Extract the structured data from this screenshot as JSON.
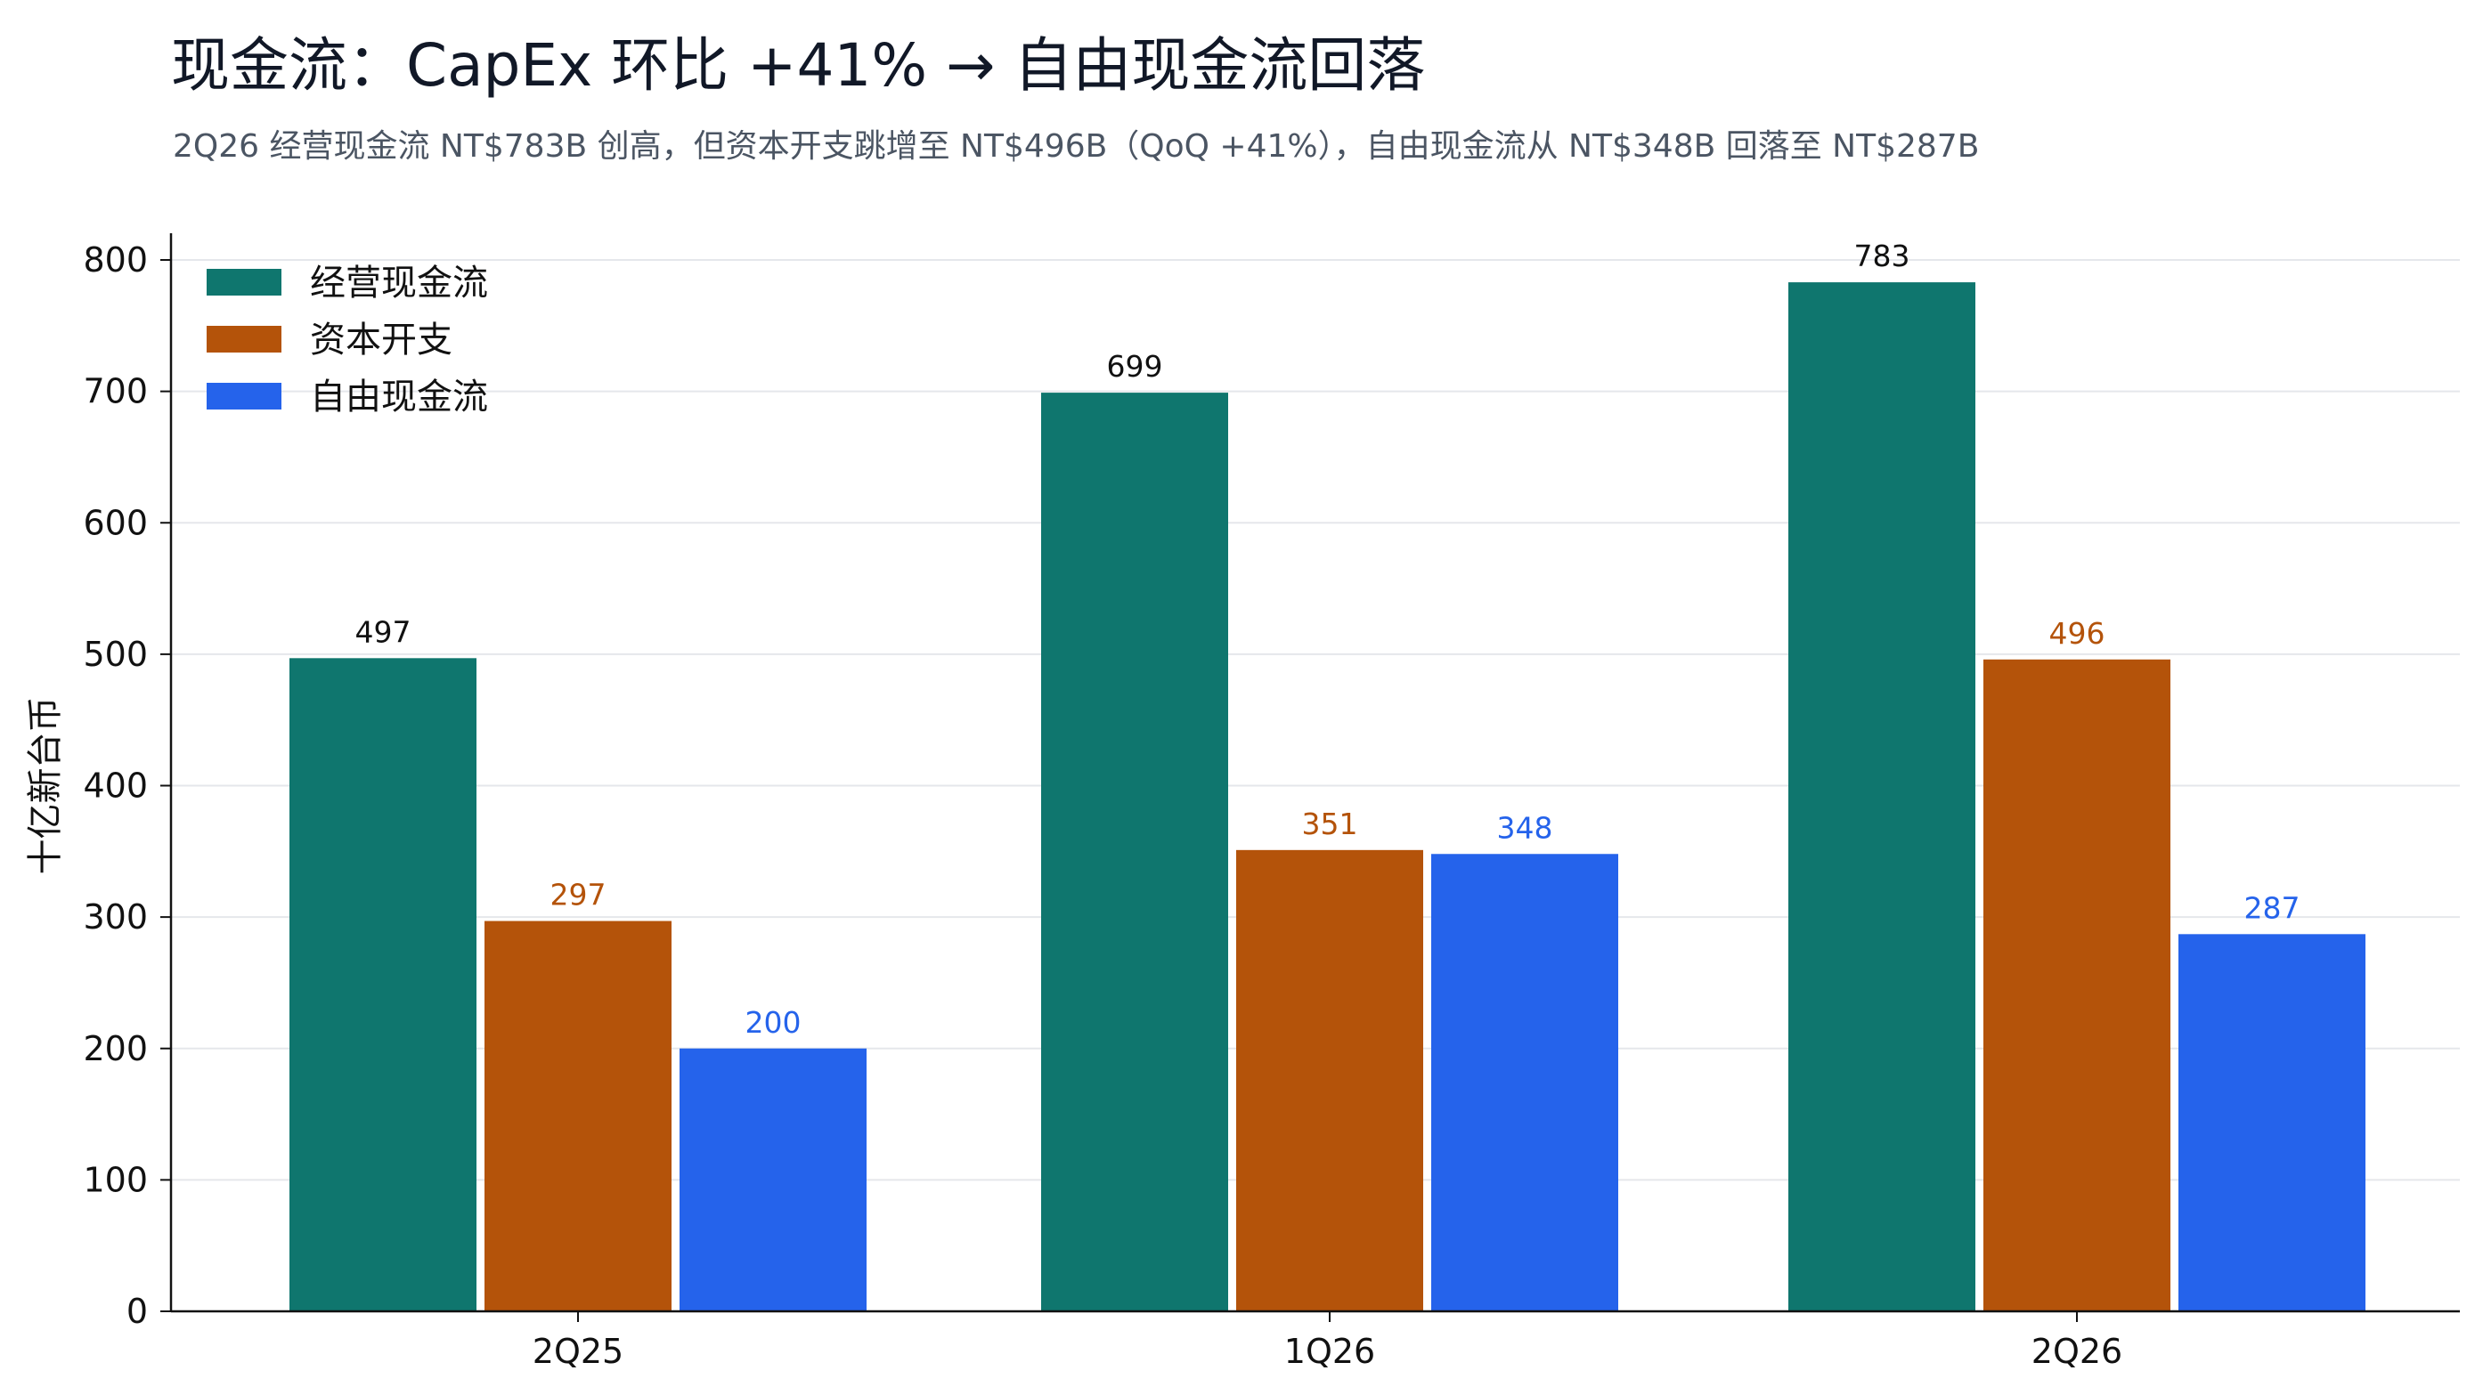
{
  "chart_data": {
    "type": "bar",
    "title": "现金流：CapEx 环比 +41% → 自由现金流回落",
    "subtitle": "2Q26 经营现金流 NT$783B 创高，但资本开支跳增至 NT$496B（QoQ +41%），自由现金流从 NT$348B 回落至 NT$287B",
    "xlabel": "",
    "ylabel": "十亿新台币",
    "ylim": [
      0,
      800
    ],
    "yticks": [
      0,
      100,
      200,
      300,
      400,
      500,
      600,
      700,
      800
    ],
    "grid": true,
    "legend_position": "top-left",
    "categories": [
      "2Q25",
      "1Q26",
      "2Q26"
    ],
    "series": [
      {
        "name": "经营现金流",
        "color": "#0f766e",
        "label_color": "#111111",
        "values": [
          497,
          699,
          783
        ]
      },
      {
        "name": "资本开支",
        "color": "#b4530a",
        "label_color": "#b4530a",
        "values": [
          297,
          351,
          496
        ]
      },
      {
        "name": "自由现金流",
        "color": "#2563eb",
        "label_color": "#2563eb",
        "values": [
          200,
          348,
          287
        ]
      }
    ]
  }
}
